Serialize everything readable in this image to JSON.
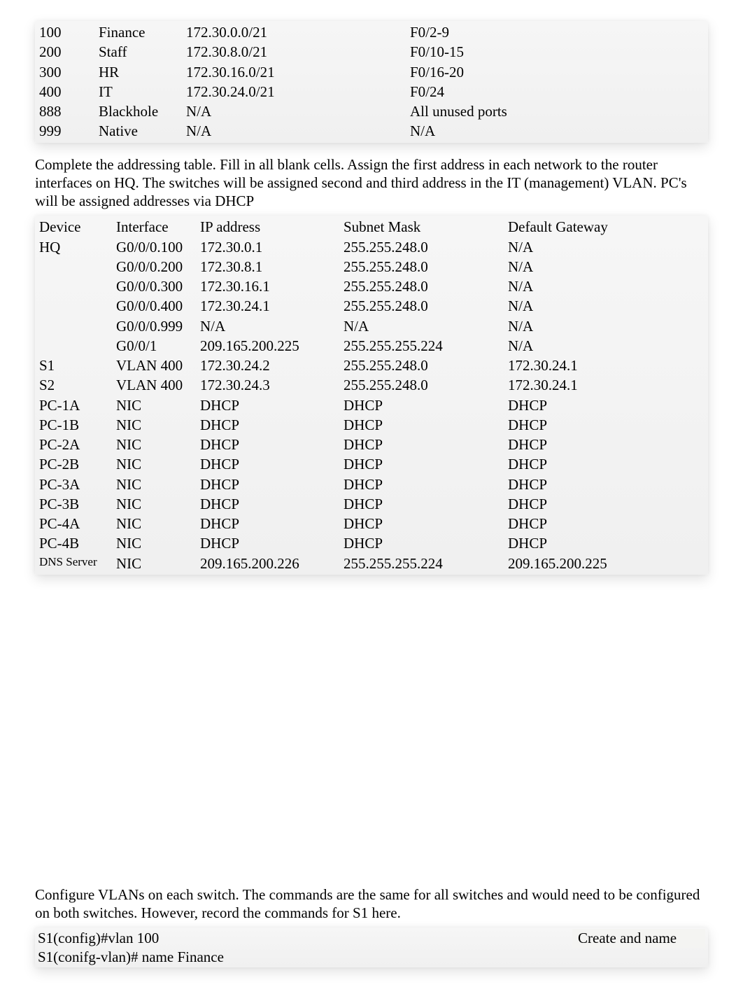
{
  "vlan_table": {
    "rows": [
      {
        "id": "100",
        "name": "Finance",
        "subnet": "172.30.0.0/21",
        "ports": "F0/2-9"
      },
      {
        "id": "200",
        "name": "Staff",
        "subnet": "172.30.8.0/21",
        "ports": "F0/10-15"
      },
      {
        "id": "300",
        "name": "HR",
        "subnet": "172.30.16.0/21",
        "ports": "F0/16-20"
      },
      {
        "id": "400",
        "name": "IT",
        "subnet": "172.30.24.0/21",
        "ports": "F0/24"
      },
      {
        "id": "888",
        "name": "Blackhole",
        "subnet": "N/A",
        "ports": "All unused ports"
      },
      {
        "id": "999",
        "name": "Native",
        "subnet": "N/A",
        "ports": "N/A"
      }
    ]
  },
  "instructions1": "Complete the addressing table. Fill in all blank cells. Assign the first address in each network to the router interfaces on HQ. The switches will be assigned second and third address in the IT (management) VLAN. PC's will be assigned addresses via DHCP",
  "addr_table": {
    "headers": {
      "device": "Device",
      "iface": "Interface",
      "ip": "IP address",
      "mask": "Subnet Mask",
      "gw": "Default Gateway"
    },
    "rows": [
      {
        "device": "HQ",
        "iface": "G0/0/0.100",
        "ip": "172.30.0.1",
        "mask": "255.255.248.0",
        "gw": "N/A"
      },
      {
        "device": "",
        "iface": "G0/0/0.200",
        "ip": "172.30.8.1",
        "mask": "255.255.248.0",
        "gw": "N/A"
      },
      {
        "device": "",
        "iface": "G0/0/0.300",
        "ip": "172.30.16.1",
        "mask": "255.255.248.0",
        "gw": "N/A"
      },
      {
        "device": "",
        "iface": "G0/0/0.400",
        "ip": "172.30.24.1",
        "mask": "255.255.248.0",
        "gw": "N/A"
      },
      {
        "device": "",
        "iface": "G0/0/0.999",
        "ip": "N/A",
        "mask": "N/A",
        "gw": "N/A"
      },
      {
        "device": "",
        "iface": "G0/0/1",
        "ip": "209.165.200.225",
        "mask": "255.255.255.224",
        "gw": "N/A"
      },
      {
        "device": "S1",
        "iface": "VLAN 400",
        "ip": "172.30.24.2",
        "mask": "255.255.248.0",
        "gw": "172.30.24.1"
      },
      {
        "device": "S2",
        "iface": "VLAN 400",
        "ip": "172.30.24.3",
        "mask": "255.255.248.0",
        "gw": "172.30.24.1"
      },
      {
        "device": "PC-1A",
        "iface": "NIC",
        "ip": "DHCP",
        "mask": "DHCP",
        "gw": "DHCP"
      },
      {
        "device": "PC-1B",
        "iface": "NIC",
        "ip": "DHCP",
        "mask": "DHCP",
        "gw": "DHCP"
      },
      {
        "device": "PC-2A",
        "iface": "NIC",
        "ip": "DHCP",
        "mask": "DHCP",
        "gw": "DHCP"
      },
      {
        "device": "PC-2B",
        "iface": "NIC",
        "ip": "DHCP",
        "mask": "DHCP",
        "gw": "DHCP"
      },
      {
        "device": "PC-3A",
        "iface": "NIC",
        "ip": "DHCP",
        "mask": "DHCP",
        "gw": "DHCP"
      },
      {
        "device": "PC-3B",
        "iface": "NIC",
        "ip": "DHCP",
        "mask": "DHCP",
        "gw": "DHCP"
      },
      {
        "device": "PC-4A",
        "iface": "NIC",
        "ip": "DHCP",
        "mask": "DHCP",
        "gw": "DHCP"
      },
      {
        "device": "PC-4B",
        "iface": "NIC",
        "ip": "DHCP",
        "mask": "DHCP",
        "gw": "DHCP"
      },
      {
        "device": "DNS Server",
        "iface": "NIC",
        "ip": "209.165.200.226",
        "mask": "255.255.255.224",
        "gw": "209.165.200.225",
        "small": true
      }
    ]
  },
  "instructions2": "Configure VLANs on each switch.  The commands are the same for all switches and would need to be configured on both switches.  However, record the commands for S1 here.",
  "commands": {
    "line1": "S1(config)#vlan 100",
    "line2": "S1(conifg-vlan)# name Finance",
    "note": "Create and name"
  }
}
